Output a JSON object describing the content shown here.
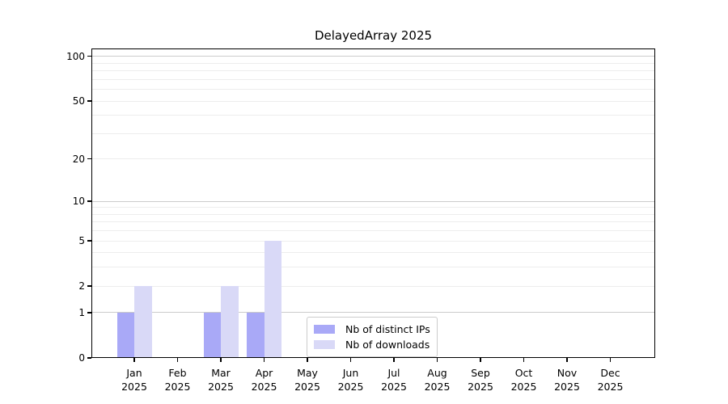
{
  "title": "DelayedArray 2025",
  "colors": {
    "background": "#ffffff",
    "spine": "#000000",
    "text": "#000000",
    "grid_major": "#cccccc",
    "grid_minor": "#ededed",
    "legend_border": "#cccccc",
    "series_ips": "#a9a9f7",
    "series_downloads": "#d9d9f7"
  },
  "chart_data": {
    "type": "bar",
    "title": "DelayedArray 2025",
    "categories": [
      "Jan",
      "Feb",
      "Mar",
      "Apr",
      "May",
      "Jun",
      "Jul",
      "Aug",
      "Sep",
      "Oct",
      "Nov",
      "Dec"
    ],
    "year": "2025",
    "series": [
      {
        "name": "Nb of distinct IPs",
        "color": "#a9a9f7",
        "values": [
          1,
          0,
          1,
          1,
          0,
          0,
          0,
          0,
          0,
          0,
          0,
          0
        ]
      },
      {
        "name": "Nb of downloads",
        "color": "#d9d9f7",
        "values": [
          2,
          0,
          2,
          5,
          0,
          0,
          0,
          0,
          0,
          0,
          0,
          0
        ]
      }
    ],
    "xlabel": "",
    "ylabel": "",
    "yscale": "log1p",
    "ylim": [
      0,
      113
    ],
    "yticks": [
      0,
      1,
      2,
      5,
      10,
      20,
      50,
      100
    ],
    "grid_major": [
      1,
      10,
      100
    ],
    "grid_minor": [
      2,
      3,
      4,
      5,
      6,
      7,
      8,
      9,
      20,
      30,
      40,
      50,
      60,
      70,
      80,
      90
    ],
    "grid": "horizontal",
    "legend_position": "lower-center"
  }
}
